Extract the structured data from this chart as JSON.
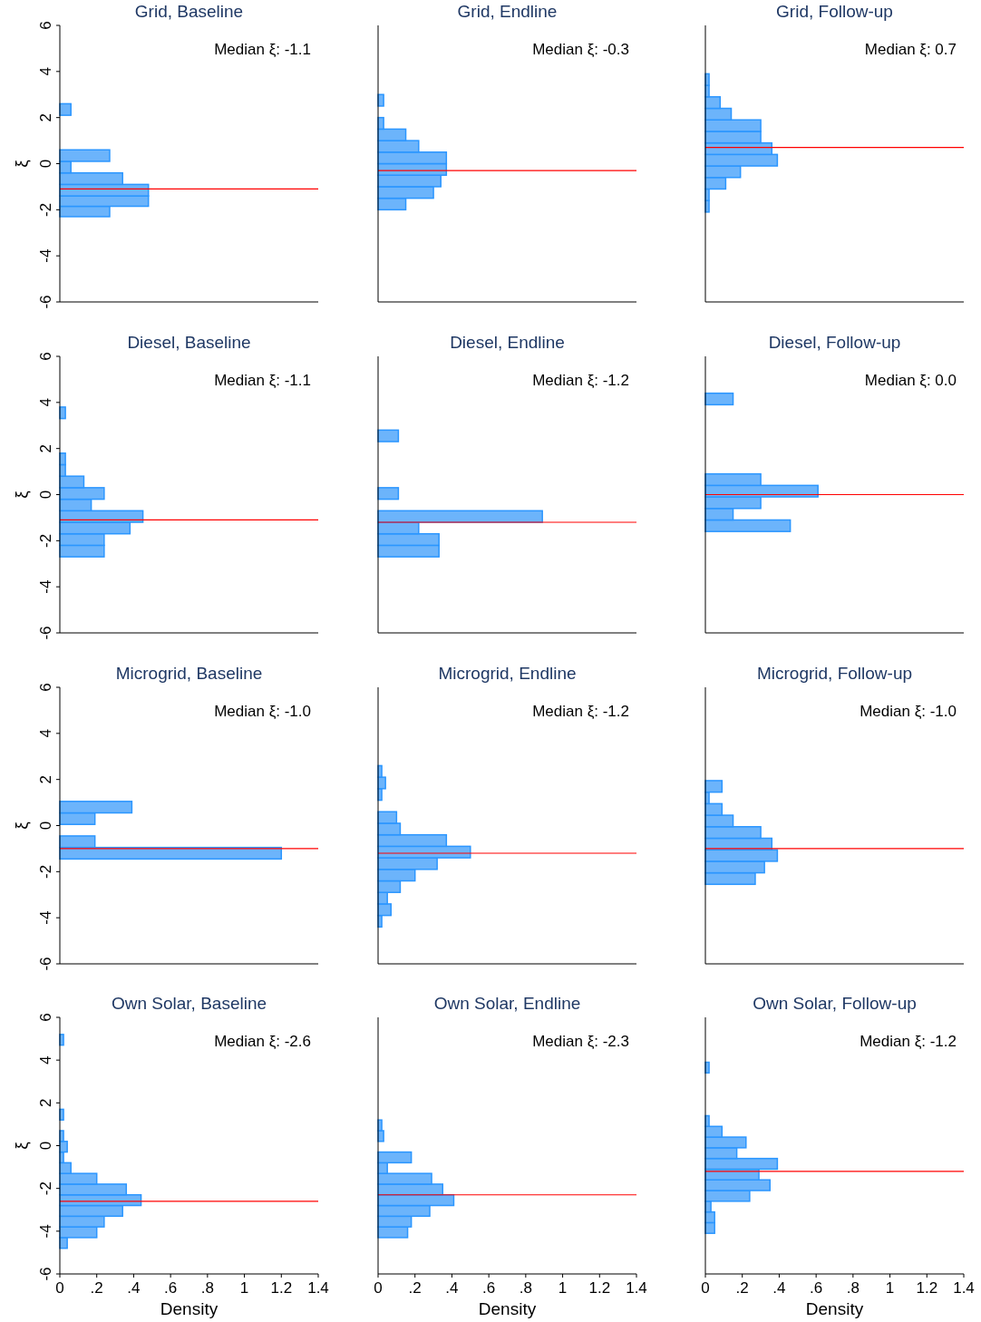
{
  "chart_data": [
    {
      "type": "histogram",
      "orientation": "horizontal",
      "title": "Grid, Baseline",
      "ylabel": "ξ",
      "color": "#6cb4fb",
      "bins": [
        -2.3,
        -1.85,
        -1.4,
        -0.9,
        -0.4,
        0.1,
        0.6,
        2.1,
        2.6
      ],
      "values": [
        0.27,
        0.48,
        0.48,
        0.34,
        0.06,
        0.27,
        0,
        0.06
      ],
      "ref_lines": [
        {
          "axis": "y",
          "value": -1.1,
          "color": "#ff0000"
        }
      ],
      "annotations": [
        "Median ξ: -1.1"
      ],
      "xlim": [
        0,
        1.4
      ],
      "ylim": [
        -6,
        6
      ],
      "yticks": [
        -6,
        -4,
        -2,
        0,
        2,
        4,
        6
      ],
      "tick_labels": "y"
    },
    {
      "type": "histogram",
      "orientation": "horizontal",
      "title": "Grid, Endline",
      "color": "#6cb4fb",
      "bins": [
        -2,
        -1.5,
        -1,
        -0.5,
        0,
        0.5,
        1,
        1.5,
        2,
        2.5,
        3
      ],
      "values": [
        0.15,
        0.3,
        0.34,
        0.37,
        0.37,
        0.22,
        0.15,
        0.03,
        0,
        0.03
      ],
      "ref_lines": [
        {
          "axis": "y",
          "value": -0.3,
          "color": "#ff0000"
        }
      ],
      "annotations": [
        "Median ξ: -0.3"
      ],
      "xlim": [
        0,
        1.4
      ],
      "ylim": [
        -6,
        6
      ],
      "tick_labels": false
    },
    {
      "type": "histogram",
      "orientation": "horizontal",
      "title": "Grid, Follow-up",
      "color": "#6cb4fb",
      "bins": [
        -2.1,
        -1.6,
        -1.1,
        -0.6,
        -0.1,
        0.4,
        0.9,
        1.4,
        1.9,
        2.4,
        2.9,
        3.4,
        3.9
      ],
      "values": [
        0.02,
        0.02,
        0.11,
        0.19,
        0.39,
        0.36,
        0.3,
        0.3,
        0.14,
        0.08,
        0.02,
        0.02
      ],
      "ref_lines": [
        {
          "axis": "y",
          "value": 0.7,
          "color": "#ff0000"
        }
      ],
      "annotations": [
        "Median ξ: 0.7"
      ],
      "xlim": [
        0,
        1.4
      ],
      "ylim": [
        -6,
        6
      ],
      "tick_labels": false
    },
    {
      "type": "histogram",
      "orientation": "horizontal",
      "title": "Diesel, Baseline",
      "ylabel": "ξ",
      "color": "#6cb4fb",
      "bins": [
        -2.7,
        -2.2,
        -1.7,
        -1.2,
        -0.7,
        -0.2,
        0.3,
        0.8,
        1.3,
        1.8,
        2.3,
        2.8,
        3.3,
        3.8
      ],
      "values": [
        0.24,
        0.24,
        0.38,
        0.45,
        0.17,
        0.24,
        0.13,
        0.03,
        0.03,
        0,
        0,
        0,
        0.03
      ],
      "ref_lines": [
        {
          "axis": "y",
          "value": -1.1,
          "color": "#ff0000"
        }
      ],
      "annotations": [
        "Median ξ: -1.1"
      ],
      "xlim": [
        0,
        1.4
      ],
      "ylim": [
        -6,
        6
      ],
      "yticks": [
        -6,
        -4,
        -2,
        0,
        2,
        4,
        6
      ],
      "tick_labels": "y"
    },
    {
      "type": "histogram",
      "orientation": "horizontal",
      "title": "Diesel, Endline",
      "color": "#6cb4fb",
      "bins": [
        -2.7,
        -2.2,
        -1.7,
        -1.2,
        -0.7,
        -0.2,
        0.3,
        0.8,
        1.3,
        1.8,
        2.3,
        2.8
      ],
      "values": [
        0.33,
        0.33,
        0.22,
        0.89,
        0,
        0.11,
        0,
        0,
        0,
        0,
        0.11
      ],
      "ref_lines": [
        {
          "axis": "y",
          "value": -1.2,
          "color": "#ff0000"
        }
      ],
      "annotations": [
        "Median ξ: -1.2"
      ],
      "xlim": [
        0,
        1.4
      ],
      "ylim": [
        -6,
        6
      ],
      "tick_labels": false
    },
    {
      "type": "histogram",
      "orientation": "horizontal",
      "title": "Diesel, Follow-up",
      "color": "#6cb4fb",
      "bins": [
        -1.6,
        -1.1,
        -0.6,
        -0.1,
        0.4,
        0.9,
        1.4,
        1.9,
        2.4,
        2.9,
        3.4,
        3.9,
        4.4
      ],
      "values": [
        0.46,
        0.15,
        0.3,
        0.61,
        0.3,
        0,
        0,
        0,
        0,
        0,
        0,
        0.15
      ],
      "ref_lines": [
        {
          "axis": "y",
          "value": 0,
          "color": "#ff0000"
        }
      ],
      "annotations": [
        "Median ξ: 0.0"
      ],
      "xlim": [
        0,
        1.4
      ],
      "ylim": [
        -6,
        6
      ],
      "tick_labels": false
    },
    {
      "type": "histogram",
      "orientation": "horizontal",
      "title": "Microgrid, Baseline",
      "ylabel": "ξ",
      "color": "#6cb4fb",
      "bins": [
        -1.45,
        -0.95,
        -0.45,
        0.05,
        0.55,
        1.05
      ],
      "values": [
        1.2,
        0.19,
        0,
        0.19,
        0.39
      ],
      "ref_lines": [
        {
          "axis": "y",
          "value": -1,
          "color": "#ff0000"
        }
      ],
      "annotations": [
        "Median ξ: -1.0"
      ],
      "xlim": [
        0,
        1.4
      ],
      "ylim": [
        -6,
        6
      ],
      "yticks": [
        -6,
        -4,
        -2,
        0,
        2,
        4,
        6
      ],
      "tick_labels": "y"
    },
    {
      "type": "histogram",
      "orientation": "horizontal",
      "title": "Microgrid, Endline",
      "color": "#6cb4fb",
      "bins": [
        -4.4,
        -3.9,
        -3.4,
        -2.9,
        -2.4,
        -1.9,
        -1.4,
        -0.9,
        -0.4,
        0.1,
        0.6,
        1.1,
        1.6,
        2.1,
        2.6
      ],
      "values": [
        0.02,
        0.07,
        0.05,
        0.12,
        0.2,
        0.32,
        0.5,
        0.37,
        0.12,
        0.1,
        0,
        0.02,
        0.04,
        0.02
      ],
      "ref_lines": [
        {
          "axis": "y",
          "value": -1.2,
          "color": "#ff0000"
        }
      ],
      "annotations": [
        "Median ξ: -1.2"
      ],
      "xlim": [
        0,
        1.4
      ],
      "ylim": [
        -6,
        6
      ],
      "tick_labels": false
    },
    {
      "type": "histogram",
      "orientation": "horizontal",
      "title": "Microgrid, Follow-up",
      "color": "#6cb4fb",
      "bins": [
        -2.55,
        -2.05,
        -1.55,
        -1.05,
        -0.55,
        -0.05,
        0.45,
        0.95,
        1.45,
        1.95
      ],
      "values": [
        0.27,
        0.32,
        0.39,
        0.36,
        0.3,
        0.15,
        0.09,
        0.02,
        0.09
      ],
      "ref_lines": [
        {
          "axis": "y",
          "value": -1,
          "color": "#ff0000"
        }
      ],
      "annotations": [
        "Median ξ: -1.0"
      ],
      "xlim": [
        0,
        1.4
      ],
      "ylim": [
        -6,
        6
      ],
      "tick_labels": false
    },
    {
      "type": "histogram",
      "orientation": "horizontal",
      "title": "Own Solar, Baseline",
      "xlabel": "Density",
      "ylabel": "ξ",
      "color": "#6cb4fb",
      "bins": [
        -4.8,
        -4.3,
        -3.8,
        -3.3,
        -2.8,
        -2.3,
        -1.8,
        -1.3,
        -0.8,
        -0.3,
        0.2,
        0.7,
        1.2,
        1.7,
        2.2,
        2.7,
        3.2,
        3.7,
        4.2,
        4.7,
        5.2
      ],
      "values": [
        0.04,
        0.2,
        0.24,
        0.34,
        0.44,
        0.36,
        0.2,
        0.06,
        0.02,
        0.04,
        0.02,
        0,
        0.02,
        0,
        0,
        0,
        0,
        0,
        0,
        0.02
      ],
      "ref_lines": [
        {
          "axis": "y",
          "value": -2.6,
          "color": "#ff0000"
        }
      ],
      "annotations": [
        "Median ξ: -2.6"
      ],
      "xlim": [
        0,
        1.4
      ],
      "ylim": [
        -6,
        6
      ],
      "xticks": [
        0,
        {
          "value": 0.2,
          "label": ".2"
        },
        {
          "value": 0.4,
          "label": ".4"
        },
        {
          "value": 0.6,
          "label": ".6"
        },
        {
          "value": 0.8,
          "label": ".8"
        },
        1,
        1.2,
        1.4
      ],
      "yticks": [
        -6,
        -4,
        -2,
        0,
        2,
        4,
        6
      ]
    },
    {
      "type": "histogram",
      "orientation": "horizontal",
      "title": "Own Solar, Endline",
      "xlabel": "Density",
      "color": "#6cb4fb",
      "bins": [
        -4.3,
        -3.8,
        -3.3,
        -2.8,
        -2.3,
        -1.8,
        -1.3,
        -0.8,
        -0.3,
        0.2,
        0.7,
        1.2
      ],
      "values": [
        0.16,
        0.18,
        0.28,
        0.41,
        0.35,
        0.29,
        0.05,
        0.18,
        0,
        0.03,
        0.02
      ],
      "ref_lines": [
        {
          "axis": "y",
          "value": -2.3,
          "color": "#ff0000"
        }
      ],
      "annotations": [
        "Median ξ: -2.3"
      ],
      "xlim": [
        0,
        1.4
      ],
      "ylim": [
        -6,
        6
      ],
      "xticks": [
        0,
        {
          "value": 0.2,
          "label": ".2"
        },
        {
          "value": 0.4,
          "label": ".4"
        },
        {
          "value": 0.6,
          "label": ".6"
        },
        {
          "value": 0.8,
          "label": ".8"
        },
        1,
        1.2,
        1.4
      ],
      "tick_labels": "x"
    },
    {
      "type": "histogram",
      "orientation": "horizontal",
      "title": "Own Solar, Follow-up",
      "xlabel": "Density",
      "color": "#6cb4fb",
      "bins": [
        -4.1,
        -3.6,
        -3.1,
        -2.6,
        -2.1,
        -1.6,
        -1.1,
        -0.6,
        -0.1,
        0.4,
        0.9,
        1.4,
        1.9,
        2.4,
        2.9,
        3.4,
        3.9
      ],
      "values": [
        0.05,
        0.05,
        0.03,
        0.24,
        0.35,
        0.29,
        0.39,
        0.17,
        0.22,
        0.09,
        0.02,
        0,
        0,
        0,
        0,
        0.02
      ],
      "ref_lines": [
        {
          "axis": "y",
          "value": -1.2,
          "color": "#ff0000"
        }
      ],
      "annotations": [
        "Median ξ: -1.2"
      ],
      "xlim": [
        0,
        1.4
      ],
      "ylim": [
        -6,
        6
      ],
      "xticks": [
        0,
        {
          "value": 0.2,
          "label": ".2"
        },
        {
          "value": 0.4,
          "label": ".4"
        },
        {
          "value": 0.6,
          "label": ".6"
        },
        {
          "value": 0.8,
          "label": ".8"
        },
        1,
        1.2,
        1.4
      ],
      "tick_labels": "x"
    }
  ]
}
